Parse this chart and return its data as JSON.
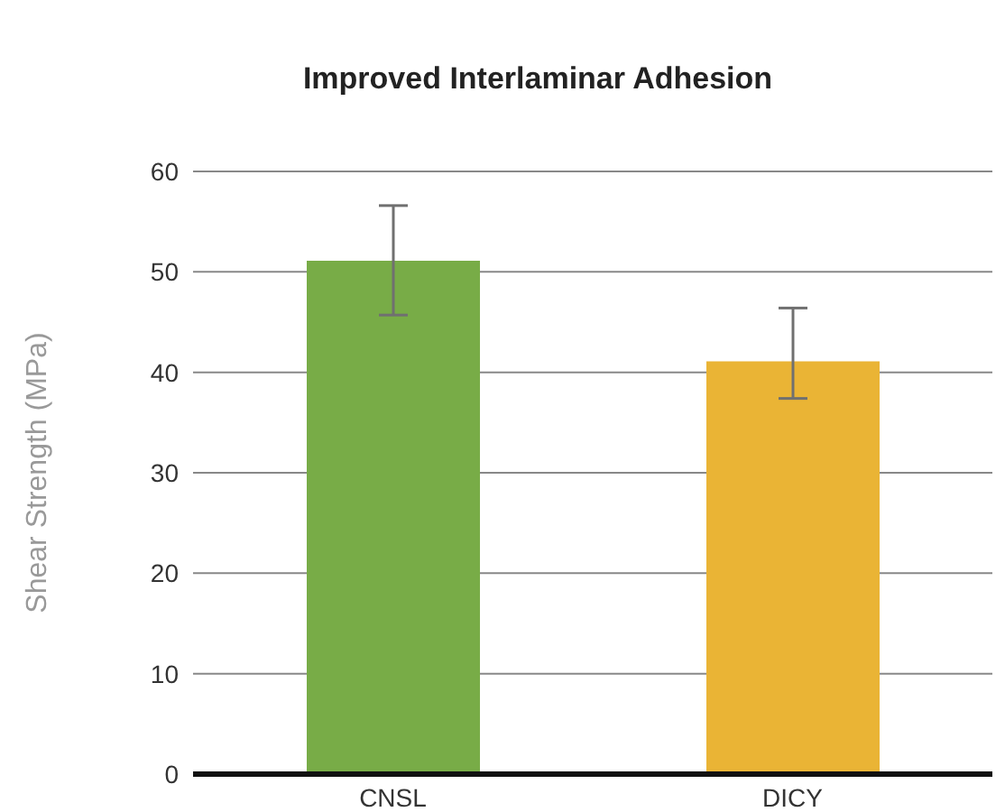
{
  "chart_data": {
    "type": "bar",
    "title": "Improved Interlaminar Adhesion",
    "ylabel": "Shear Strength (MPa)",
    "categories": [
      "CNSL",
      "DICY"
    ],
    "values": [
      51.1,
      41.1
    ],
    "colors": [
      "#78ac47",
      "#eab435"
    ],
    "errors": [
      [
        45.7,
        56.6
      ],
      [
        37.4,
        46.4
      ]
    ],
    "ylim": [
      0,
      60
    ],
    "yticks": [
      0,
      10,
      20,
      30,
      40,
      50,
      60
    ],
    "grid": "y"
  }
}
